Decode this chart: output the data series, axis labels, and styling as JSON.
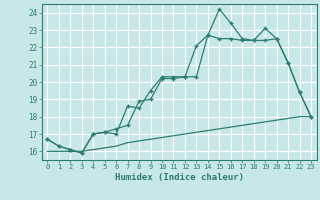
{
  "xlabel": "Humidex (Indice chaleur)",
  "bg_color": "#c8e8e8",
  "grid_color": "#ffffff",
  "line_color": "#2d7d6e",
  "xlim": [
    -0.5,
    23.5
  ],
  "ylim": [
    15.5,
    24.5
  ],
  "xticks": [
    0,
    1,
    2,
    3,
    4,
    5,
    6,
    7,
    8,
    9,
    10,
    11,
    12,
    13,
    14,
    15,
    16,
    17,
    18,
    19,
    20,
    21,
    22,
    23
  ],
  "yticks": [
    16,
    17,
    18,
    19,
    20,
    21,
    22,
    23,
    24
  ],
  "line1_x": [
    0,
    1,
    2,
    3,
    4,
    5,
    6,
    7,
    8,
    9,
    10,
    11,
    12,
    13,
    14,
    15,
    16,
    17,
    18,
    19,
    20,
    21,
    22,
    23
  ],
  "line1_y": [
    16.7,
    16.3,
    16.1,
    15.9,
    17.0,
    17.1,
    17.0,
    18.6,
    18.5,
    19.5,
    20.3,
    20.3,
    20.3,
    22.1,
    22.7,
    24.2,
    23.4,
    22.5,
    22.4,
    23.1,
    22.5,
    21.1,
    19.4,
    18.0
  ],
  "line2_x": [
    0,
    1,
    2,
    3,
    4,
    5,
    6,
    7,
    8,
    9,
    10,
    11,
    12,
    13,
    14,
    15,
    16,
    17,
    18,
    19,
    20,
    21,
    22,
    23
  ],
  "line2_y": [
    16.7,
    16.3,
    16.1,
    15.9,
    17.0,
    17.1,
    17.3,
    17.5,
    18.9,
    19.0,
    20.2,
    20.2,
    20.3,
    20.3,
    22.7,
    22.5,
    22.5,
    22.4,
    22.4,
    22.4,
    22.5,
    21.1,
    19.4,
    18.0
  ],
  "line3_x": [
    0,
    1,
    2,
    3,
    4,
    5,
    6,
    7,
    8,
    9,
    10,
    11,
    12,
    13,
    14,
    15,
    16,
    17,
    18,
    19,
    20,
    21,
    22,
    23
  ],
  "line3_y": [
    16.0,
    16.0,
    16.0,
    16.0,
    16.1,
    16.2,
    16.3,
    16.5,
    16.6,
    16.7,
    16.8,
    16.9,
    17.0,
    17.1,
    17.2,
    17.3,
    17.4,
    17.5,
    17.6,
    17.7,
    17.8,
    17.9,
    18.0,
    18.0
  ]
}
